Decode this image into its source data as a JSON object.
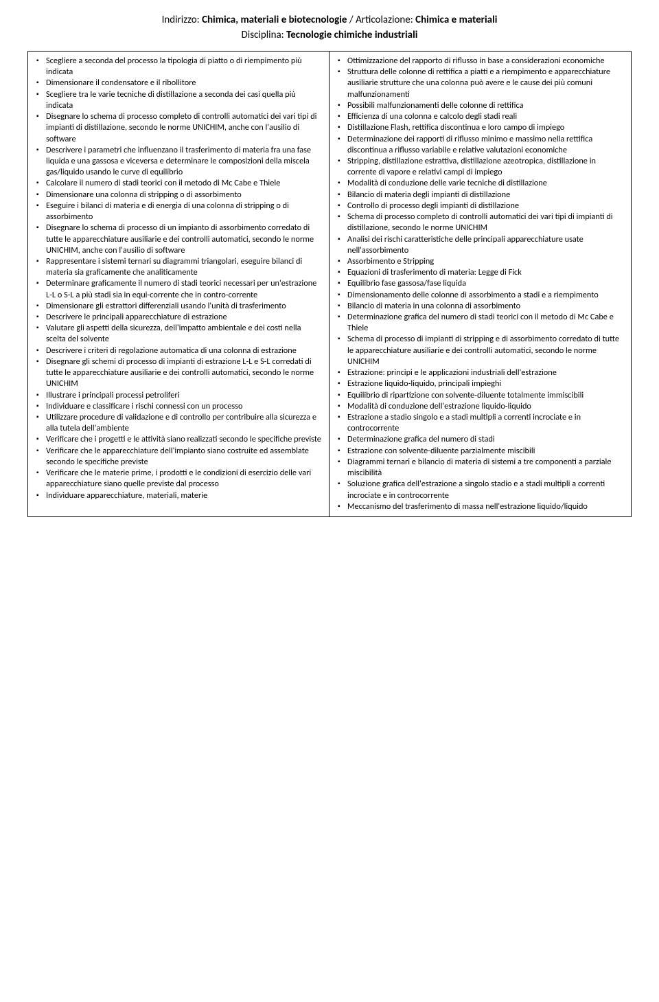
{
  "header": {
    "indirizzo_label": "Indirizzo: ",
    "indirizzo_value": "Chimica, materiali e biotecnologie",
    "separator": " / ",
    "articolazione_label": "Articolazione: ",
    "articolazione_value": "Chimica e materiali",
    "disciplina_label": "Disciplina: ",
    "disciplina_value": "Tecnologie chimiche industriali"
  },
  "left_items": [
    "Scegliere a seconda del processo la tipologia di piatto o di riempimento più  indicata",
    "Dimensionare il condensatore e il ribollitore",
    "Scegliere tra le varie tecniche di distillazione a seconda dei casi quella più indicata",
    "Disegnare lo schema di processo completo di controlli automatici dei vari tipi di impianti di distillazione, secondo le norme UNICHIM, anche con l'ausilio di software",
    "Descrivere i parametri che influenzano il trasferimento di materia fra una fase liquida e una gassosa e viceversa e determinare le composizioni della miscela  gas/liquido usando le curve di equilibrio",
    "Calcolare il numero di stadi teorici con il metodo di Mc Cabe e Thiele",
    "Dimensionare una colonna di stripping o di assorbimento",
    "Eseguire i bilanci di materia  e di energia  di una colonna di stripping o di assorbimento",
    "Disegnare lo schema di processo di un impianto di assorbimento corredato di tutte le apparecchiature ausiliarie e dei controlli automatici, secondo le norme UNICHIM,  anche con l'ausilio di software",
    "Rappresentare i sistemi ternari su diagrammi triangolari, eseguire bilanci di materia sia graficamente che analiticamente",
    "Determinare graficamente il numero di stadi teorici necessari per un'estrazione L-L o S-L a più stadi sia in equi-corrente che in contro-corrente",
    "Dimensionare gli estrattori differenziali usando l'unità di trasferimento",
    "Descrivere le principali apparecchiature di estrazione",
    "Valutare gli aspetti della sicurezza,  dell'impatto ambientale e dei costi nella scelta del solvente",
    "Descrivere i criteri di regolazione automatica di una colonna di estrazione",
    "Disegnare gli schemi di processo di impianti di estrazione L-L e S-L corredati di tutte le apparecchiature ausiliarie e dei controlli automatici, secondo le norme UNICHIM",
    "Illustrare i principali processi petroliferi",
    "Individuare e classificare i rischi connessi con  un processo",
    "Utilizzare procedure di validazione e di controllo per contribuire alla sicurezza e alla tutela dell'ambiente",
    "Verificare che i progetti e le attività siano realizzati secondo le specifiche previste",
    "Verificare che le apparecchiature dell'impianto siano costruite ed assemblate secondo le specifiche previste",
    "Verificare che le materie prime, i prodotti  e le condizioni di esercizio delle vari apparecchiature siano quelle previste dal processo",
    "Individuare apparecchiature, materiali, materie"
  ],
  "right_items": [
    "Ottimizzazione del rapporto di riflusso in base a considerazioni economiche",
    "Struttura delle colonne di rettifica a piatti e a riempimento e apparecchiature ausiliarie strutture che una colonna può avere e le cause dei più comuni malfunzionamenti",
    "Possibili malfunzionamenti delle colonne di rettifica",
    "Efficienza di una colonna e calcolo degli stadi reali",
    "Distillazione Flash, rettifica discontinua e loro campo di impiego",
    "Determinazione dei rapporti di riflusso minimo e massimo nella rettifica discontinua a riflusso variabile e relative valutazioni economiche",
    "Stripping, distillazione estrattiva, distillazione azeotropica, distillazione in corrente di vapore e relativi campi di impiego",
    "Modalità di conduzione delle varie tecniche di distillazione",
    "Bilancio di materia degli  impianti di distillazione",
    "Controllo di processo degli impianti di distillazione",
    "Schema di processo completo di controlli automatici dei vari tipi di impianti di distillazione, secondo le norme UNICHIM",
    "Analisi dei rischi caratteristiche delle principali apparecchiature usate nell'assorbimento",
    "Assorbimento e Stripping",
    "Equazioni di trasferimento di materia: Legge di Fick",
    "Equilibrio fase gassosa/fase liquida",
    "Dimensionamento delle colonne di assorbimento  a stadi e a riempimento",
    "Bilancio di materia in una colonna di assorbimento",
    "Determinazione grafica del numero di stadi teorici con il metodo di Mc Cabe e Thiele",
    "Schema di processo di impianti di stripping e di assorbimento corredato di tutte le apparecchiature ausiliarie e dei controlli automatici, secondo le norme UNICHIM",
    "Estrazione: principi e le applicazioni industriali dell'estrazione",
    "Estrazione liquido-liquido, principali impieghi",
    "Equilibrio di ripartizione con solvente-diluente totalmente immiscibili",
    "Modalità di conduzione dell'estrazione liquido-liquido",
    "Estrazione a stadio singolo e a stadi multipli a correnti incrociate e in controcorrente",
    "Determinazione grafica del numero di stadi",
    "Estrazione con solvente-diluente parzialmente miscibili",
    "Diagrammi ternari e bilancio di materia di sistemi a tre componenti a parziale miscibilità",
    "Soluzione grafica dell'estrazione a singolo stadio e a stadi multipli a correnti incrociate e in controcorrente",
    "Meccanismo del trasferimento di massa nell'estrazione liquido/liquido"
  ]
}
